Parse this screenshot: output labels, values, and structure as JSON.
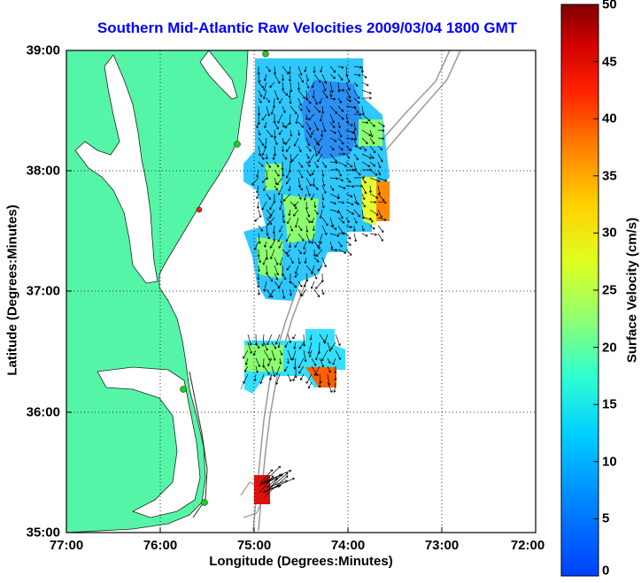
{
  "title": "Southern Mid-Atlantic Raw Velocities 2009/03/04 1800 GMT",
  "xlabel": "Longitude (Degrees:Minutes)",
  "ylabel": "Latitude (Degrees:Minutes)",
  "x_ticks": [
    "77:00",
    "76:00",
    "75:00",
    "74:00",
    "73:00",
    "72:00"
  ],
  "y_ticks": [
    "39:00",
    "38:00",
    "37:00",
    "36:00",
    "35:00"
  ],
  "colorbar": {
    "label": "Surface Velocity (cm/s)",
    "ticks": [
      "50",
      "45",
      "40",
      "35",
      "30",
      "25",
      "20",
      "15",
      "10",
      "5",
      "0"
    ],
    "range": [
      0,
      50
    ]
  },
  "colors": {
    "title": "#0000ff",
    "land": "#55f5a8",
    "water": "#ffffff",
    "bathymetry": "#9a9a9a",
    "station_green": "#22cc22",
    "station_red": "#ee2222"
  }
}
